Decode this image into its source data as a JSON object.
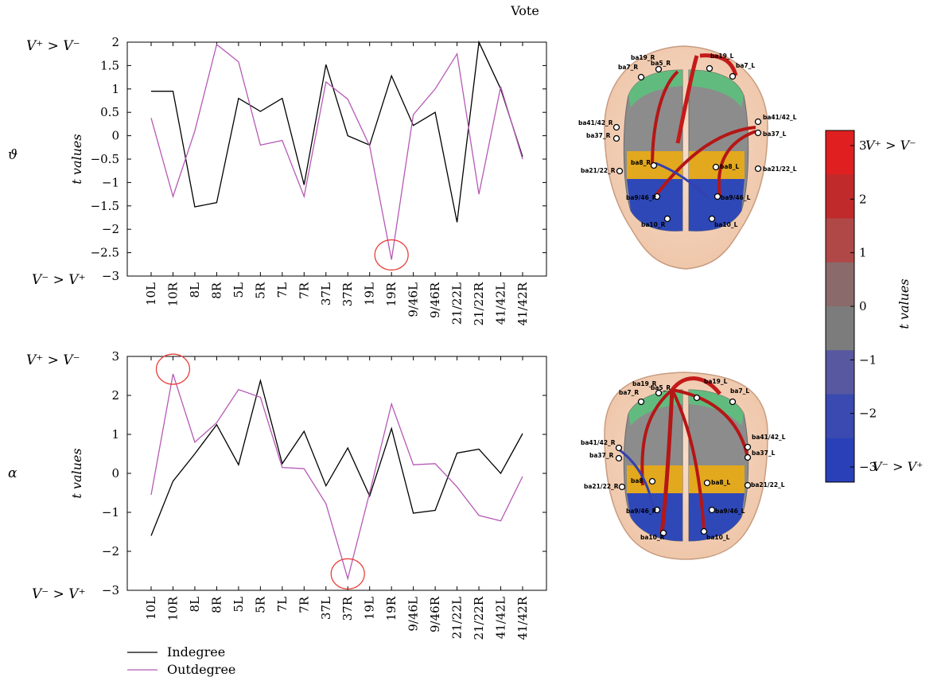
{
  "figure": {
    "title": "Vote",
    "legend": {
      "placement": "bottom-left"
    },
    "colorbar": {
      "label": "t values",
      "ticks": [
        "3",
        "2",
        "1",
        "0",
        "−1",
        "−2",
        "−3"
      ],
      "top_label": "V⁺ > V⁻",
      "bottom_label": "V⁻ > V⁺",
      "colors": [
        "#e02020",
        "#c02a2a",
        "#b04848",
        "#8a6a6a",
        "#7c7c7c",
        "#5858a0",
        "#3a4ab0",
        "#2a40b8"
      ]
    },
    "brain_labels": {
      "top": [
        "ba19_R",
        "ba5_R",
        "ba19_L",
        "ba7_R",
        "ba7_L",
        "ba41/42_R",
        "ba41/42_L",
        "ba37_R",
        "ba37_L",
        "ba8_R",
        "ba8_L",
        "ba21/22_R",
        "ba21/22_L",
        "ba9/46_R",
        "ba9/46_L",
        "ba10_R",
        "ba10_L"
      ],
      "bottom": [
        "ba19_R",
        "ba5_R",
        "ba19_L",
        "ba7_R",
        "ba7_L",
        "ba41/42_R",
        "ba41/42_L",
        "ba37_R",
        "ba37_L",
        "ba8",
        "ba8_L",
        "ba21/22_R",
        "ba21/22_L",
        "ba9/46_R",
        "ba9/46_L",
        "ba10_R",
        "ba10_L"
      ]
    },
    "colors": {
      "indegree": "#000000",
      "outdegree": "#b55ab5",
      "highlight": "#e8403a"
    }
  },
  "chart_data": [
    {
      "type": "line",
      "band_label": "ϑ",
      "ylabel": "t values",
      "top_annotation": "V⁺ > V⁻",
      "bottom_annotation": "V⁻ > V⁺",
      "ylim": [
        -3,
        2
      ],
      "yticks": [
        2,
        1.5,
        1,
        0.5,
        0,
        -0.5,
        -1,
        -1.5,
        -2,
        -2.5,
        -3
      ],
      "ytick_labels": [
        "2",
        "1.5",
        "1",
        "0.5",
        "0",
        "−0.5",
        "−1",
        "−1.5",
        "−2",
        "−2.5",
        "−3"
      ],
      "categories": [
        "10L",
        "10R",
        "8L",
        "8R",
        "5L",
        "5R",
        "7L",
        "7R",
        "37L",
        "37R",
        "19L",
        "19R",
        "9/46L",
        "9/46R",
        "21/22L",
        "21/22R",
        "41/42L",
        "41/42R"
      ],
      "series": [
        {
          "name": "Indegree",
          "values": [
            0.95,
            0.95,
            -1.52,
            -1.43,
            0.8,
            0.52,
            0.8,
            -1.05,
            1.52,
            0.0,
            -0.2,
            1.28,
            0.22,
            0.5,
            -1.85,
            2.0,
            1.0,
            -0.45
          ]
        },
        {
          "name": "Outdegree",
          "values": [
            0.38,
            -1.3,
            0.1,
            1.95,
            1.58,
            -0.2,
            -0.1,
            -1.3,
            1.15,
            0.78,
            -0.22,
            -2.65,
            0.45,
            1.0,
            1.75,
            -1.25,
            1.05,
            -0.5
          ]
        }
      ],
      "highlight_index": 11
    },
    {
      "type": "line",
      "band_label": "α",
      "ylabel": "t values",
      "top_annotation": "V⁺ > V⁻",
      "bottom_annotation": "V⁻ > V⁺",
      "ylim": [
        -3,
        3
      ],
      "yticks": [
        3,
        2,
        1,
        0,
        -1,
        -2,
        -3
      ],
      "ytick_labels": [
        "3",
        "2",
        "1",
        "0",
        "−1",
        "−2",
        "−3"
      ],
      "categories": [
        "10L",
        "10R",
        "8L",
        "8R",
        "5L",
        "5R",
        "7L",
        "7R",
        "37L",
        "37R",
        "19L",
        "19R",
        "9/46L",
        "9/46R",
        "21/22L",
        "21/22R",
        "41/42L",
        "41/42R"
      ],
      "series": [
        {
          "name": "Indegree",
          "values": [
            -1.6,
            -0.2,
            0.5,
            1.25,
            0.22,
            2.38,
            0.25,
            1.08,
            -0.32,
            0.65,
            -0.58,
            1.15,
            -1.02,
            -0.95,
            0.52,
            0.62,
            0.0,
            1.02
          ]
        },
        {
          "name": "Outdegree",
          "values": [
            -0.55,
            2.55,
            0.8,
            1.3,
            2.15,
            1.95,
            0.15,
            0.12,
            -0.78,
            -2.7,
            -0.5,
            1.78,
            0.22,
            0.25,
            -0.35,
            -1.08,
            -1.22,
            -0.08
          ]
        }
      ],
      "highlight_index": [
        1,
        9
      ]
    }
  ]
}
